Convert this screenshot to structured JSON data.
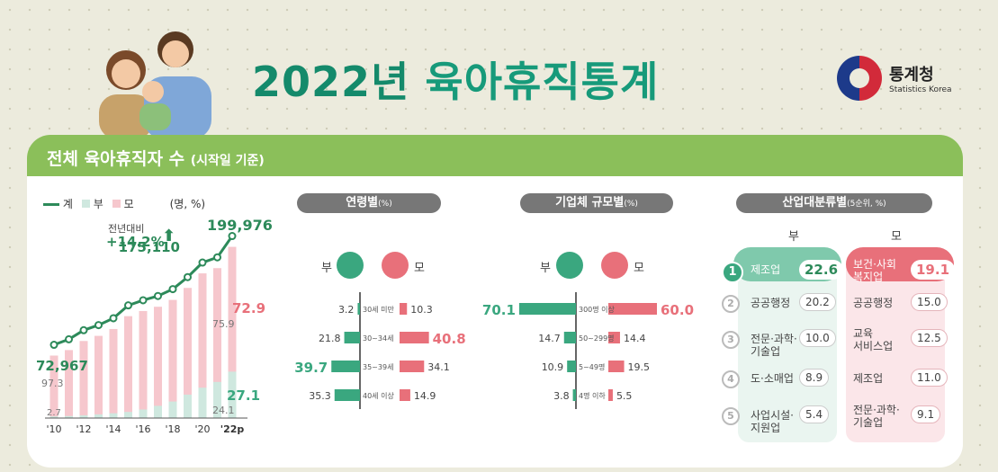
{
  "title": {
    "year": "2022년",
    "text": "육아휴직통계"
  },
  "logo": {
    "name": "통계청",
    "en": "Statistics Korea"
  },
  "band": {
    "main": "전체 육아휴직자 수",
    "sub": "(시작일 기준)"
  },
  "colors": {
    "green": "#3aa77f",
    "dark_green": "#2d8a5a",
    "pink": "#e8707a",
    "light_pink": "#f6c7cd",
    "light_green": "#cfe8df"
  },
  "legend": {
    "total": "계",
    "father": "부",
    "mother": "모",
    "unit": "(명, %)"
  },
  "growth": {
    "label": "전년대비",
    "value": "+14.2%"
  },
  "sections": {
    "age": "연령별",
    "size": "기업체 규모별",
    "industry": "산업대분류별",
    "pct": "(%)",
    "industry_note": "(5순위, %)",
    "father": "부",
    "mother": "모"
  },
  "chart_data": [
    {
      "type": "bar",
      "categories": [
        "'10",
        "",
        "'12",
        "",
        "'14",
        "",
        "'16",
        "",
        "'18",
        "",
        "'20",
        "",
        "'22p"
      ],
      "series": [
        {
          "name": "계",
          "values": [
            72967,
            79400,
            90000,
            96000,
            104000,
            119000,
            125000,
            130000,
            138000,
            152000,
            169000,
            175110,
            199976
          ]
        },
        {
          "name": "부",
          "values": [
            2.7,
            3.0,
            3.6,
            4.5,
            5.4,
            6.0,
            8.0,
            11.0,
            14.0,
            18.0,
            21.0,
            24.1,
            27.1
          ]
        },
        {
          "name": "모",
          "values": [
            97.3,
            97.0,
            96.4,
            95.5,
            94.6,
            94.0,
            92.0,
            89.0,
            86.0,
            82.0,
            79.0,
            75.9,
            72.9
          ]
        }
      ],
      "labels": {
        "total_first": "72,967",
        "total_prev": "175,110",
        "total_last": "199,976",
        "mom_first": "97.3",
        "mom_prev": "75.9",
        "mom_last": "72.9",
        "dad_first": "2.7",
        "dad_prev": "24.1",
        "dad_last": "27.1"
      }
    },
    {
      "type": "bar",
      "title": "연령별",
      "categories": [
        "30세 미만",
        "30~34세",
        "35~39세",
        "40세 이상"
      ],
      "series": [
        {
          "name": "부",
          "values": [
            3.2,
            21.8,
            39.7,
            35.3
          ]
        },
        {
          "name": "모",
          "values": [
            10.3,
            40.8,
            34.1,
            14.9
          ]
        }
      ]
    },
    {
      "type": "bar",
      "title": "기업체 규모별",
      "categories": [
        "300명 이상",
        "50~299명",
        "5~49명",
        "4명 이하"
      ],
      "series": [
        {
          "name": "부",
          "values": [
            70.1,
            14.7,
            10.9,
            3.8
          ]
        },
        {
          "name": "모",
          "values": [
            60.0,
            14.4,
            19.5,
            5.5
          ]
        }
      ]
    },
    {
      "type": "table",
      "title": "산업대분류별",
      "father": [
        {
          "rank": "1",
          "name": "제조업",
          "value": "22.6"
        },
        {
          "rank": "2",
          "name": "공공행정",
          "value": "20.2"
        },
        {
          "rank": "3",
          "name": "전문·과학·\n기술업",
          "value": "10.0"
        },
        {
          "rank": "4",
          "name": "도·소매업",
          "value": "8.9"
        },
        {
          "rank": "5",
          "name": "사업시설·\n지원업",
          "value": "5.4"
        }
      ],
      "mother": [
        {
          "name": "보건·사회\n복지업",
          "value": "19.1"
        },
        {
          "name": "공공행정",
          "value": "15.0"
        },
        {
          "name": "교육\n서비스업",
          "value": "12.5"
        },
        {
          "name": "제조업",
          "value": "11.0"
        },
        {
          "name": "전문·과학·\n기술업",
          "value": "9.1"
        }
      ]
    }
  ]
}
